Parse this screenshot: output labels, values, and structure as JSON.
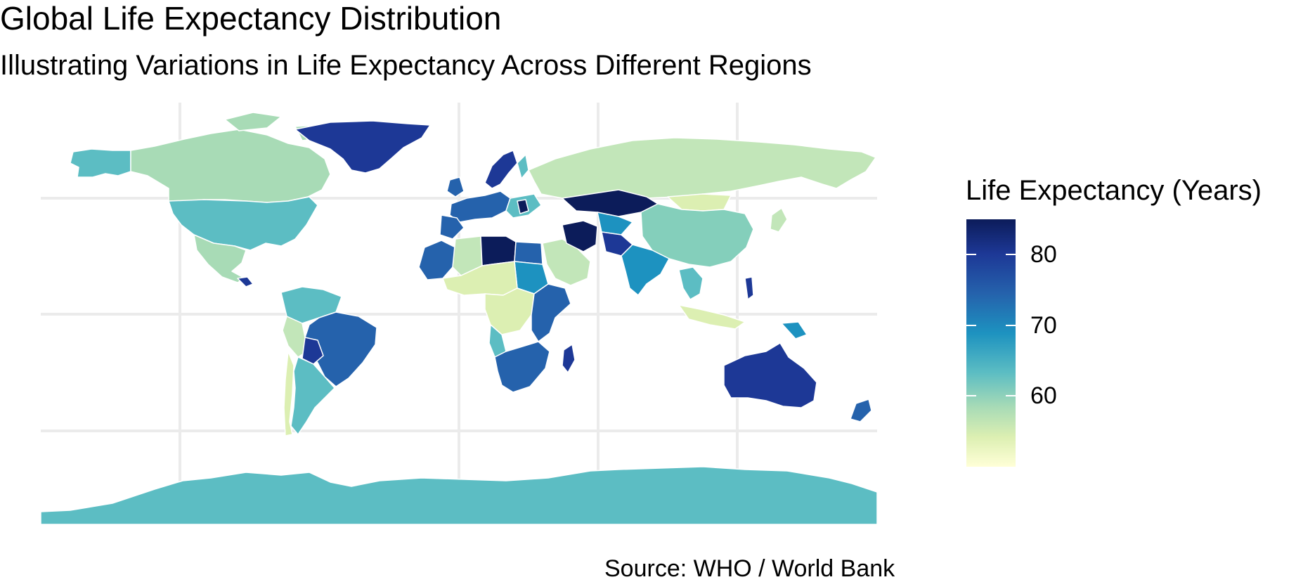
{
  "title": "Global Life Expectancy Distribution",
  "subtitle": "Illustrating Variations in Life Expectancy Across Different Regions",
  "caption": "Source: WHO / World Bank",
  "legend": {
    "title": "Life Expectancy (Years)",
    "ticks": [
      "80",
      "70",
      "60"
    ],
    "tick_values": [
      80,
      70,
      60
    ],
    "range": [
      50,
      85
    ],
    "colors": [
      "#ffffd7",
      "#dcefb2",
      "#a8dbb6",
      "#5cbdc3",
      "#1d92c0",
      "#2562ac",
      "#1d3896",
      "#0c1c5a"
    ]
  },
  "map": {
    "projection": "equirectangular",
    "grid": true,
    "grid_color": "#ebebeb",
    "land_base_color": "#c2e6b9",
    "regions": [
      {
        "name": "Greenland",
        "value": 82
      },
      {
        "name": "Alaska",
        "value": 66
      },
      {
        "name": "Canada",
        "value": 60
      },
      {
        "name": "United States",
        "value": 66
      },
      {
        "name": "Mexico",
        "value": 60
      },
      {
        "name": "Russia",
        "value": 59
      },
      {
        "name": "Kazakhstan",
        "value": 84
      },
      {
        "name": "China",
        "value": 63
      },
      {
        "name": "Mongolia",
        "value": 55
      },
      {
        "name": "India",
        "value": 69
      },
      {
        "name": "Iran",
        "value": 84
      },
      {
        "name": "Libya",
        "value": 85
      },
      {
        "name": "Brazil",
        "value": 76
      },
      {
        "name": "Bolivia",
        "value": 83
      },
      {
        "name": "Argentina",
        "value": 68
      },
      {
        "name": "Madagascar",
        "value": 83
      },
      {
        "name": "South Africa",
        "value": 78
      },
      {
        "name": "Australia",
        "value": 82
      },
      {
        "name": "Antarctica",
        "value": 66
      }
    ]
  }
}
